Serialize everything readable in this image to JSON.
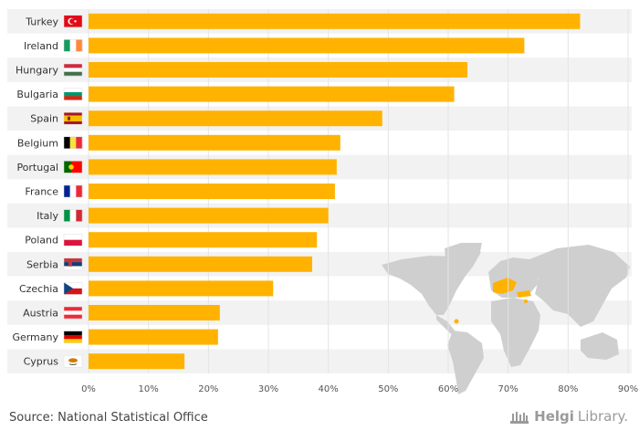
{
  "chart_data": {
    "type": "bar",
    "orientation": "horizontal",
    "title": "",
    "xlabel": "",
    "ylabel": "",
    "xlim": [
      0,
      90
    ],
    "tick_values": [
      0,
      10,
      20,
      30,
      40,
      50,
      60,
      70,
      80,
      90
    ],
    "tick_labels": [
      "0%",
      "10%",
      "20%",
      "30%",
      "40%",
      "50%",
      "60%",
      "70%",
      "80%",
      "90%"
    ],
    "categories": [
      "Turkey",
      "Ireland",
      "Hungary",
      "Bulgaria",
      "Spain",
      "Belgium",
      "Portugal",
      "France",
      "Italy",
      "Poland",
      "Serbia",
      "Czechia",
      "Austria",
      "Germany",
      "Cyprus"
    ],
    "values": [
      82,
      72.7,
      63.2,
      61,
      49,
      42,
      41.4,
      41.1,
      40,
      38.1,
      37.3,
      30.8,
      21.9,
      21.6,
      16
    ],
    "bar_color": "#FFB300",
    "row_stripe_color": "#f2f2f2",
    "grid": true
  },
  "footer": {
    "source": "Source: National Statistical Office"
  },
  "brand": {
    "part1": "Helgi",
    "part2": "Library."
  }
}
